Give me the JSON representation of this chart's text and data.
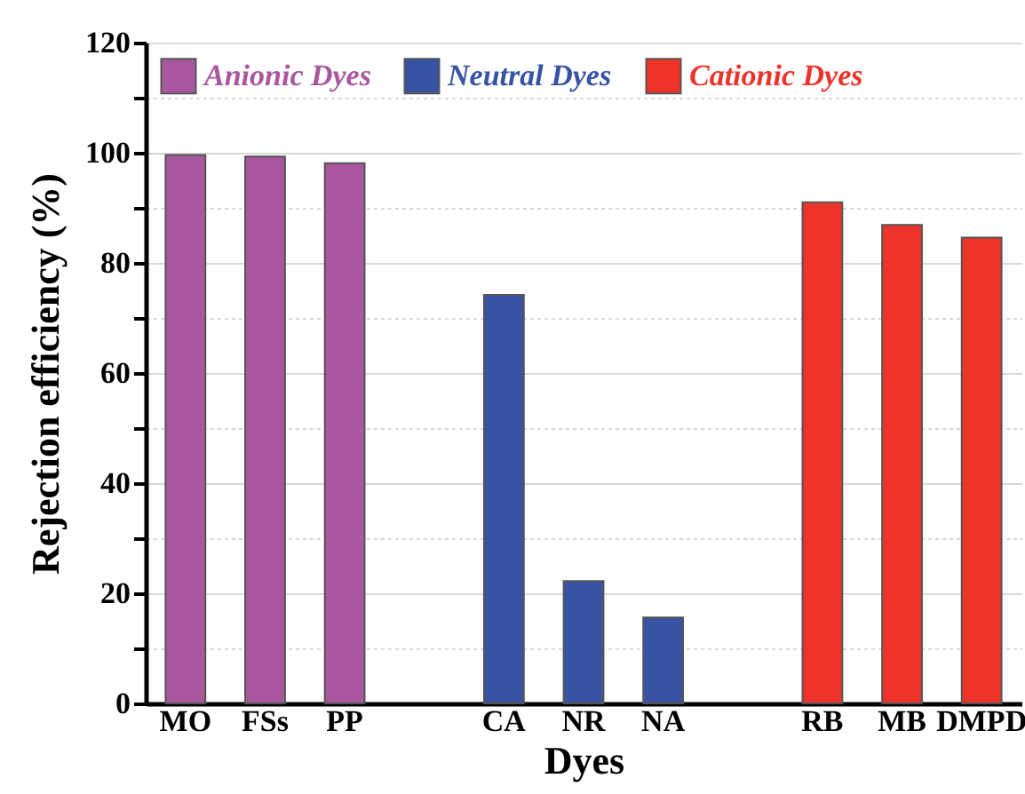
{
  "chart_data": {
    "type": "bar",
    "xlabel": "Dyes",
    "ylabel": "Rejection efficiency (%)",
    "categories": [
      "MO",
      "FSs",
      "PP",
      null,
      "CA",
      "NR",
      "NA",
      null,
      "RB",
      "MB",
      "DMPD"
    ],
    "series": [
      {
        "name": "Anionic Dyes",
        "color": "#a9579f",
        "values": [
          99.6,
          99.3,
          98.1,
          null,
          null,
          null,
          null,
          null,
          null,
          null,
          null
        ]
      },
      {
        "name": "Neutral Dyes",
        "color": "#3853a4",
        "values": [
          null,
          null,
          null,
          null,
          74.2,
          22.2,
          15.6,
          null,
          null,
          null,
          null
        ]
      },
      {
        "name": "Cationic Dyes",
        "color": "#ee332a",
        "values": [
          null,
          null,
          null,
          null,
          null,
          null,
          null,
          null,
          91,
          86.9,
          84.6
        ]
      }
    ],
    "ylim": [
      0,
      120
    ],
    "yticks": [
      0,
      {
        "value": 10,
        "label": null
      },
      20,
      {
        "value": 30,
        "label": null
      },
      40,
      {
        "value": 50,
        "label": null
      },
      60,
      {
        "value": 70,
        "label": null
      },
      80,
      {
        "value": 90,
        "label": null
      },
      100,
      {
        "value": 110,
        "label": null
      },
      120
    ],
    "grid": "y",
    "legend": "top"
  }
}
